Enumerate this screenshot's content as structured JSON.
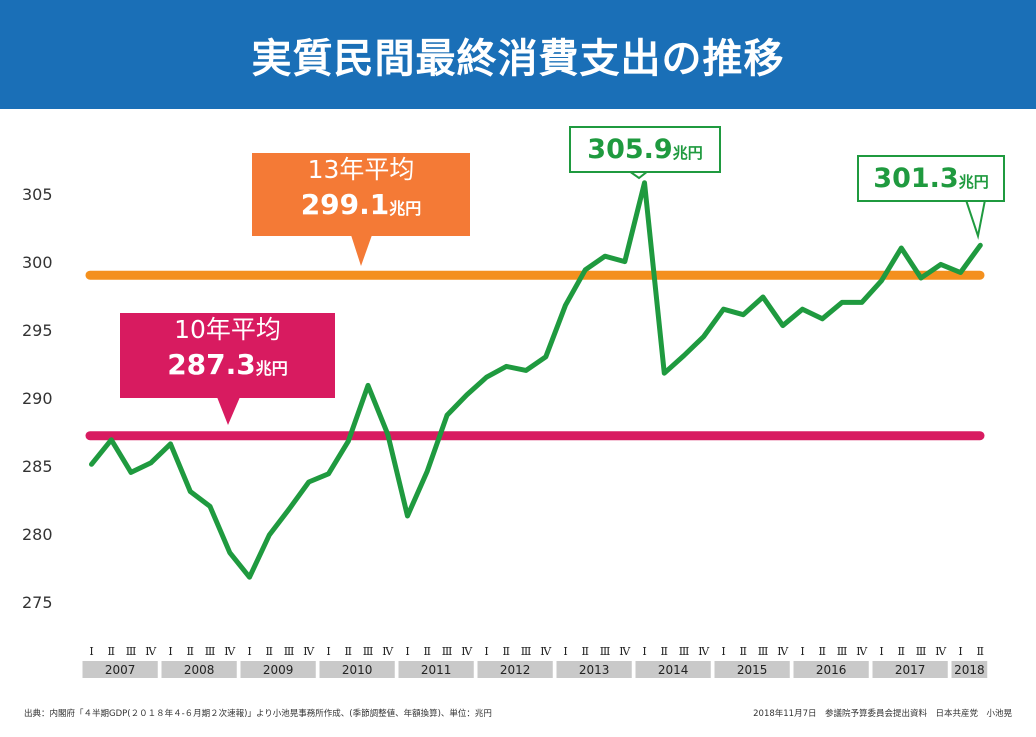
{
  "header": {
    "title": "実質民間最終消費支出の推移"
  },
  "colors": {
    "header_bg": "#1a6fb7",
    "series_line": "#1f9a3f",
    "avg13_line": "#f4901e",
    "avg10_line": "#d81b60",
    "avg13_callout": "#f47a36",
    "avg10_callout": "#d81b60",
    "year_band": "#c9c9c9"
  },
  "callouts": {
    "avg13": {
      "label": "13年平均",
      "value": "299.1",
      "unit": "兆円"
    },
    "avg10": {
      "label": "10年平均",
      "value": "287.3",
      "unit": "兆円"
    },
    "peak": {
      "value": "305.9",
      "unit": "兆円"
    },
    "latest": {
      "value": "301.3",
      "unit": "兆円"
    }
  },
  "footer": {
    "source": "出典：内閣府「４半期GDP(２０１８年４-６月期２次速報)」より小池晃事務所作成、(季節調整値、年額換算)、単位：兆円",
    "credit": "2018年11月7日　参議院予算委員会提出資料　日本共産党　小池晃"
  },
  "chart_data": {
    "type": "line",
    "title": "実質民間最終消費支出の推移",
    "xlabel": "",
    "ylabel": "",
    "ylim": [
      275,
      306
    ],
    "yticks": [
      305,
      300,
      295,
      290,
      285,
      280,
      275
    ],
    "grid": false,
    "quarter_labels": [
      "Ⅰ",
      "Ⅱ",
      "Ⅲ",
      "Ⅳ"
    ],
    "years": [
      "2007",
      "2008",
      "2009",
      "2010",
      "2011",
      "2012",
      "2013",
      "2014",
      "2015",
      "2016",
      "2017",
      "2018"
    ],
    "quarters_per_year": [
      4,
      4,
      4,
      4,
      4,
      4,
      4,
      4,
      4,
      4,
      4,
      2
    ],
    "series": [
      {
        "values": [
          285.2,
          287.0,
          284.6,
          285.3,
          286.7,
          283.2,
          282.1,
          278.7,
          276.9,
          280.0,
          281.9,
          283.9,
          284.5,
          286.9,
          291.0,
          287.4,
          281.4,
          284.7,
          288.8,
          290.3,
          291.6,
          292.4,
          292.1,
          293.1,
          296.9,
          299.5,
          300.5,
          300.1,
          305.9,
          291.9,
          293.2,
          294.6,
          296.6,
          296.2,
          297.5,
          295.4,
          296.6,
          295.9,
          297.1,
          297.1,
          298.7,
          301.1,
          298.9,
          299.9,
          299.3,
          301.3
        ]
      }
    ],
    "reference_lines": [
      {
        "name": "13年平均",
        "value": 299.1
      },
      {
        "name": "10年平均",
        "value": 287.3
      }
    ]
  }
}
